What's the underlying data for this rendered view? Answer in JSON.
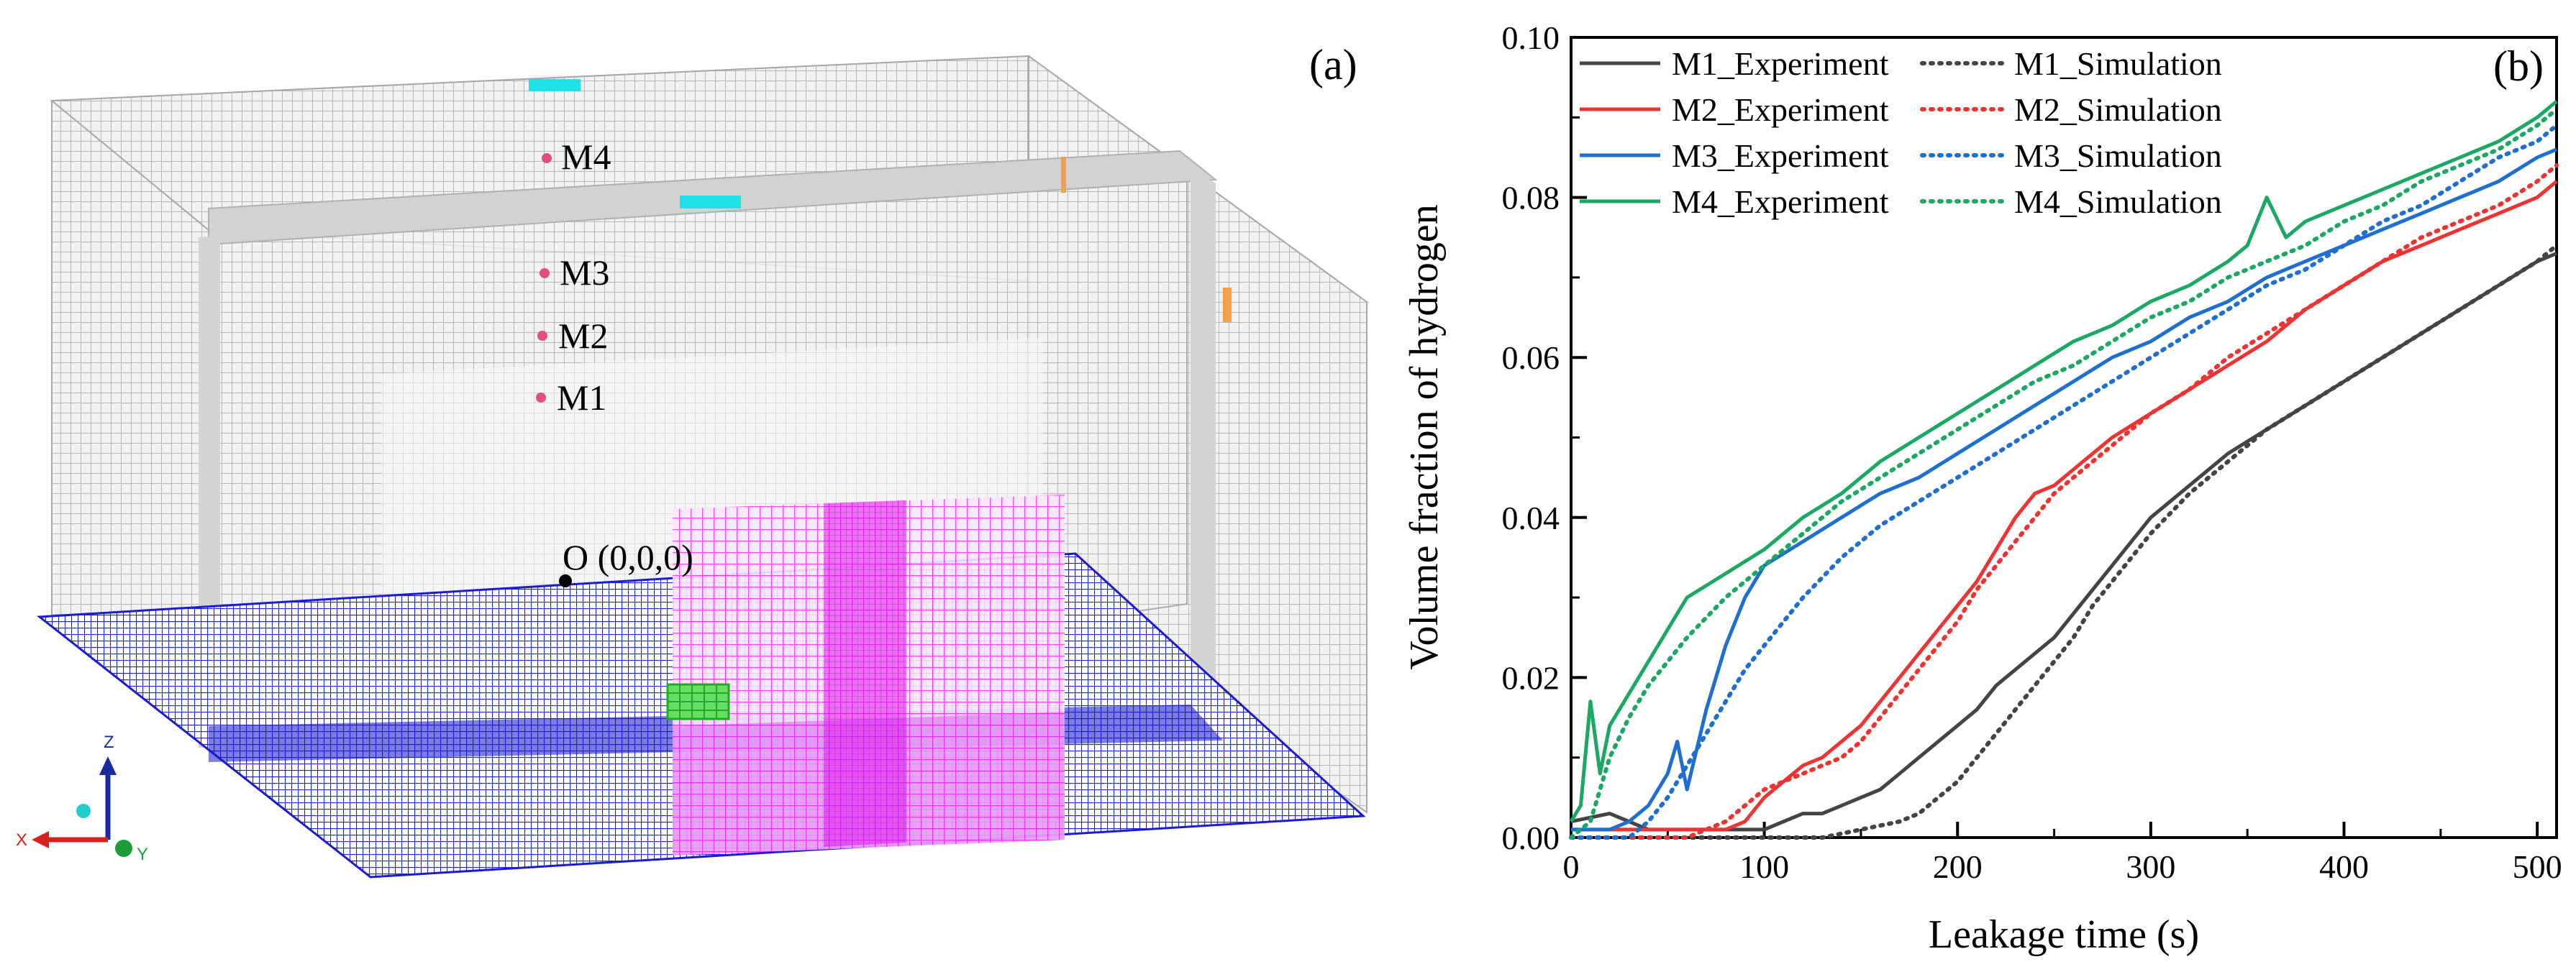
{
  "panel_a": {
    "label": "(a)",
    "probes": [
      {
        "label": "M4"
      },
      {
        "label": "M3"
      },
      {
        "label": "M2"
      },
      {
        "label": "M1"
      }
    ],
    "origin_label": "O (0,0,0)",
    "triad": {
      "x": "X",
      "y": "Y",
      "z": "Z"
    },
    "colors": {
      "mesh": "#b8b8b8",
      "floor": "#1b1bd6",
      "leak_plane": "#ff33ff",
      "vents": "#22e0e8",
      "probe": "#e0507a",
      "source": "#33cc33"
    }
  },
  "panel_b": {
    "label": "(b)"
  },
  "chart_data": {
    "type": "line",
    "title": "",
    "xlabel": "Leakage time (s)",
    "ylabel": "Volume fraction of hydrogen",
    "xlim": [
      0,
      510
    ],
    "ylim": [
      0,
      0.1
    ],
    "xticks": [
      "0",
      "100",
      "200",
      "300",
      "400",
      "500"
    ],
    "yticks": [
      "0.00",
      "0.02",
      "0.04",
      "0.06",
      "0.08",
      "0.10"
    ],
    "grid": false,
    "legend_position": "top-left",
    "series": [
      {
        "name": "M1_Experiment",
        "color": "#444444",
        "style": "solid",
        "x": [
          0,
          20,
          40,
          60,
          80,
          100,
          110,
          120,
          130,
          140,
          150,
          160,
          170,
          180,
          190,
          200,
          210,
          220,
          230,
          240,
          250,
          260,
          270,
          280,
          290,
          300,
          320,
          340,
          360,
          380,
          400,
          420,
          440,
          460,
          480,
          500,
          510
        ],
        "y": [
          0.002,
          0.003,
          0.001,
          0.001,
          0.001,
          0.001,
          0.002,
          0.003,
          0.003,
          0.004,
          0.005,
          0.006,
          0.008,
          0.01,
          0.012,
          0.014,
          0.016,
          0.019,
          0.021,
          0.023,
          0.025,
          0.028,
          0.031,
          0.034,
          0.037,
          0.04,
          0.044,
          0.048,
          0.051,
          0.054,
          0.057,
          0.06,
          0.063,
          0.066,
          0.069,
          0.072,
          0.073
        ]
      },
      {
        "name": "M1_Simulation",
        "color": "#444444",
        "style": "dotted",
        "x": [
          0,
          100,
          130,
          150,
          170,
          180,
          190,
          200,
          210,
          220,
          230,
          240,
          250,
          260,
          270,
          280,
          300,
          320,
          340,
          360,
          380,
          400,
          420,
          440,
          460,
          480,
          500,
          510
        ],
        "y": [
          0.0,
          0.0,
          0.0,
          0.001,
          0.002,
          0.003,
          0.005,
          0.007,
          0.01,
          0.013,
          0.016,
          0.019,
          0.022,
          0.025,
          0.029,
          0.032,
          0.038,
          0.043,
          0.047,
          0.051,
          0.054,
          0.057,
          0.06,
          0.063,
          0.066,
          0.069,
          0.072,
          0.074
        ]
      },
      {
        "name": "M2_Experiment",
        "color": "#ee3333",
        "style": "solid",
        "x": [
          0,
          20,
          40,
          60,
          80,
          90,
          100,
          110,
          120,
          130,
          140,
          150,
          160,
          170,
          180,
          190,
          200,
          210,
          220,
          230,
          240,
          250,
          260,
          270,
          280,
          300,
          320,
          340,
          360,
          380,
          400,
          420,
          440,
          460,
          480,
          500,
          510
        ],
        "y": [
          0.001,
          0.001,
          0.001,
          0.001,
          0.001,
          0.002,
          0.005,
          0.007,
          0.009,
          0.01,
          0.012,
          0.014,
          0.017,
          0.02,
          0.023,
          0.026,
          0.029,
          0.032,
          0.036,
          0.04,
          0.043,
          0.044,
          0.046,
          0.048,
          0.05,
          0.053,
          0.056,
          0.059,
          0.062,
          0.066,
          0.069,
          0.072,
          0.074,
          0.076,
          0.078,
          0.08,
          0.082
        ]
      },
      {
        "name": "M2_Simulation",
        "color": "#ee3333",
        "style": "dotted",
        "x": [
          0,
          60,
          80,
          90,
          100,
          110,
          120,
          130,
          140,
          150,
          160,
          170,
          180,
          190,
          200,
          210,
          220,
          230,
          240,
          250,
          260,
          270,
          280,
          300,
          320,
          340,
          360,
          380,
          400,
          420,
          440,
          460,
          480,
          500,
          510
        ],
        "y": [
          0.0,
          0.0,
          0.002,
          0.004,
          0.006,
          0.007,
          0.008,
          0.009,
          0.01,
          0.012,
          0.015,
          0.018,
          0.021,
          0.024,
          0.027,
          0.031,
          0.034,
          0.037,
          0.04,
          0.043,
          0.045,
          0.047,
          0.049,
          0.053,
          0.056,
          0.06,
          0.063,
          0.066,
          0.069,
          0.072,
          0.075,
          0.077,
          0.079,
          0.082,
          0.084
        ]
      },
      {
        "name": "M3_Experiment",
        "color": "#1f6fd1",
        "style": "solid",
        "x": [
          0,
          20,
          30,
          40,
          50,
          55,
          60,
          70,
          80,
          90,
          100,
          120,
          140,
          160,
          180,
          200,
          220,
          240,
          260,
          280,
          300,
          320,
          340,
          360,
          380,
          400,
          420,
          440,
          460,
          480,
          500,
          510
        ],
        "y": [
          0.001,
          0.001,
          0.002,
          0.004,
          0.008,
          0.012,
          0.006,
          0.016,
          0.024,
          0.03,
          0.034,
          0.037,
          0.04,
          0.043,
          0.045,
          0.048,
          0.051,
          0.054,
          0.057,
          0.06,
          0.062,
          0.065,
          0.067,
          0.07,
          0.072,
          0.074,
          0.076,
          0.078,
          0.08,
          0.082,
          0.085,
          0.086
        ]
      },
      {
        "name": "M3_Simulation",
        "color": "#1f6fd1",
        "style": "dotted",
        "x": [
          0,
          30,
          40,
          50,
          60,
          70,
          80,
          90,
          100,
          110,
          120,
          140,
          160,
          180,
          200,
          220,
          240,
          260,
          280,
          300,
          320,
          340,
          360,
          380,
          400,
          420,
          440,
          460,
          480,
          500,
          510
        ],
        "y": [
          0.0,
          0.0,
          0.002,
          0.005,
          0.009,
          0.013,
          0.017,
          0.021,
          0.024,
          0.027,
          0.03,
          0.035,
          0.039,
          0.042,
          0.045,
          0.048,
          0.051,
          0.054,
          0.057,
          0.06,
          0.063,
          0.066,
          0.069,
          0.071,
          0.074,
          0.077,
          0.079,
          0.082,
          0.085,
          0.087,
          0.089
        ]
      },
      {
        "name": "M4_Experiment",
        "color": "#1aa863",
        "style": "solid",
        "x": [
          0,
          5,
          10,
          15,
          20,
          30,
          40,
          50,
          60,
          80,
          100,
          120,
          140,
          160,
          180,
          200,
          220,
          240,
          260,
          280,
          300,
          320,
          340,
          350,
          360,
          370,
          380,
          400,
          420,
          440,
          460,
          480,
          500,
          510
        ],
        "y": [
          0.002,
          0.004,
          0.017,
          0.008,
          0.014,
          0.018,
          0.022,
          0.026,
          0.03,
          0.033,
          0.036,
          0.04,
          0.043,
          0.047,
          0.05,
          0.053,
          0.056,
          0.059,
          0.062,
          0.064,
          0.067,
          0.069,
          0.072,
          0.074,
          0.08,
          0.075,
          0.077,
          0.079,
          0.081,
          0.083,
          0.085,
          0.087,
          0.09,
          0.092
        ]
      },
      {
        "name": "M4_Simulation",
        "color": "#1aa863",
        "style": "dotted",
        "x": [
          0,
          10,
          20,
          30,
          40,
          60,
          80,
          100,
          120,
          140,
          160,
          180,
          200,
          220,
          240,
          260,
          280,
          300,
          320,
          340,
          360,
          380,
          400,
          420,
          440,
          460,
          480,
          500,
          510
        ],
        "y": [
          0.0,
          0.002,
          0.01,
          0.015,
          0.019,
          0.025,
          0.03,
          0.034,
          0.038,
          0.042,
          0.045,
          0.048,
          0.051,
          0.054,
          0.057,
          0.059,
          0.062,
          0.065,
          0.067,
          0.07,
          0.072,
          0.074,
          0.077,
          0.079,
          0.082,
          0.084,
          0.086,
          0.089,
          0.091
        ]
      }
    ]
  }
}
